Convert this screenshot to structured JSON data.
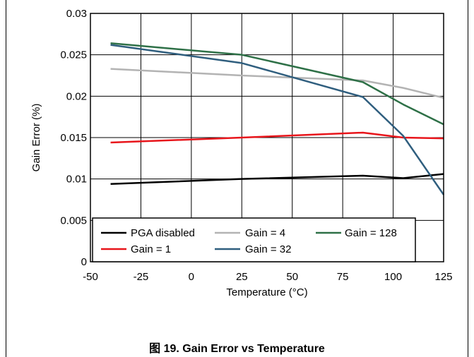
{
  "caption": "图 19. Gain Error vs Temperature",
  "colors": {
    "pga_disabled": "#000000",
    "gain_1": "#e8151b",
    "gain_4": "#b3b3b3",
    "gain_32": "#2f5e7e",
    "gain_128": "#2e7047"
  },
  "chart_data": {
    "type": "line",
    "title": "",
    "xlabel": "Temperature (°C)",
    "ylabel": "Gain Error (%)",
    "xlim": [
      -50,
      125
    ],
    "ylim": [
      0,
      0.03
    ],
    "xticks": [
      -50,
      -25,
      0,
      25,
      50,
      75,
      100,
      125
    ],
    "yticks": [
      0,
      0.005,
      0.01,
      0.015,
      0.02,
      0.025,
      0.03
    ],
    "xtick_labels": [
      "-50",
      "-25",
      "0",
      "25",
      "50",
      "75",
      "100",
      "125"
    ],
    "ytick_labels": [
      "0",
      "0.005",
      "0.01",
      "0.015",
      "0.02",
      "0.025",
      "0.03"
    ],
    "grid": true,
    "legend_position": "bottom",
    "x": [
      -40,
      25,
      85,
      105,
      125
    ],
    "series": [
      {
        "name": "PGA disabled",
        "key": "pga_disabled",
        "values": [
          0.0094,
          0.01,
          0.0104,
          0.0101,
          0.0106
        ]
      },
      {
        "name": "Gain = 4",
        "key": "gain_4",
        "values": [
          0.0233,
          0.0225,
          0.0219,
          0.021,
          0.0198
        ]
      },
      {
        "name": "Gain = 128",
        "key": "gain_128",
        "values": [
          0.0264,
          0.025,
          0.0217,
          0.019,
          0.0166
        ]
      },
      {
        "name": "Gain = 1",
        "key": "gain_1",
        "values": [
          0.0144,
          0.015,
          0.0156,
          0.015,
          0.0149
        ]
      },
      {
        "name": "Gain = 32",
        "key": "gain_32",
        "values": [
          0.0262,
          0.024,
          0.0199,
          0.0152,
          0.0081
        ]
      }
    ]
  }
}
